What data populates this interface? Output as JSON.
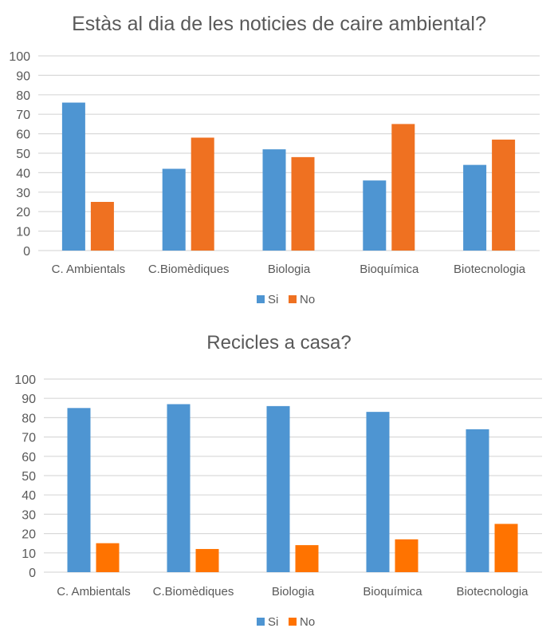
{
  "colors": {
    "si": "#4E95D2",
    "no1": "#EF7121",
    "no2": "#FF7300",
    "grid": "#D9D9D9",
    "text": "#595959"
  },
  "chart_data": [
    {
      "type": "bar",
      "title": "Estàs al dia de les noticies de caire ambiental?",
      "categories": [
        "C. Ambientals",
        "C.Biomèdiques",
        "Biologia",
        "Bioquímica",
        "Biotecnologia"
      ],
      "series": [
        {
          "name": "Si",
          "values": [
            76,
            42,
            52,
            36,
            44
          ]
        },
        {
          "name": "No",
          "values": [
            25,
            58,
            48,
            65,
            57
          ]
        }
      ],
      "yticks": [
        "0",
        "10",
        "20",
        "30",
        "40",
        "50",
        "60",
        "70",
        "80",
        "90",
        "100"
      ],
      "ylim": [
        0,
        100
      ],
      "grid": true,
      "legend": "bottom"
    },
    {
      "type": "bar",
      "title": "Recicles a casa?",
      "categories": [
        "C. Ambientals",
        "C.Biomèdiques",
        "Biologia",
        "Bioquímica",
        "Biotecnologia"
      ],
      "series": [
        {
          "name": "Si",
          "values": [
            85,
            87,
            86,
            83,
            74
          ]
        },
        {
          "name": "No",
          "values": [
            15,
            12,
            14,
            17,
            25
          ]
        }
      ],
      "yticks": [
        "0",
        "10",
        "20",
        "30",
        "40",
        "50",
        "60",
        "70",
        "80",
        "90",
        "100"
      ],
      "ylim": [
        0,
        100
      ],
      "grid": true,
      "legend": "bottom"
    }
  ]
}
